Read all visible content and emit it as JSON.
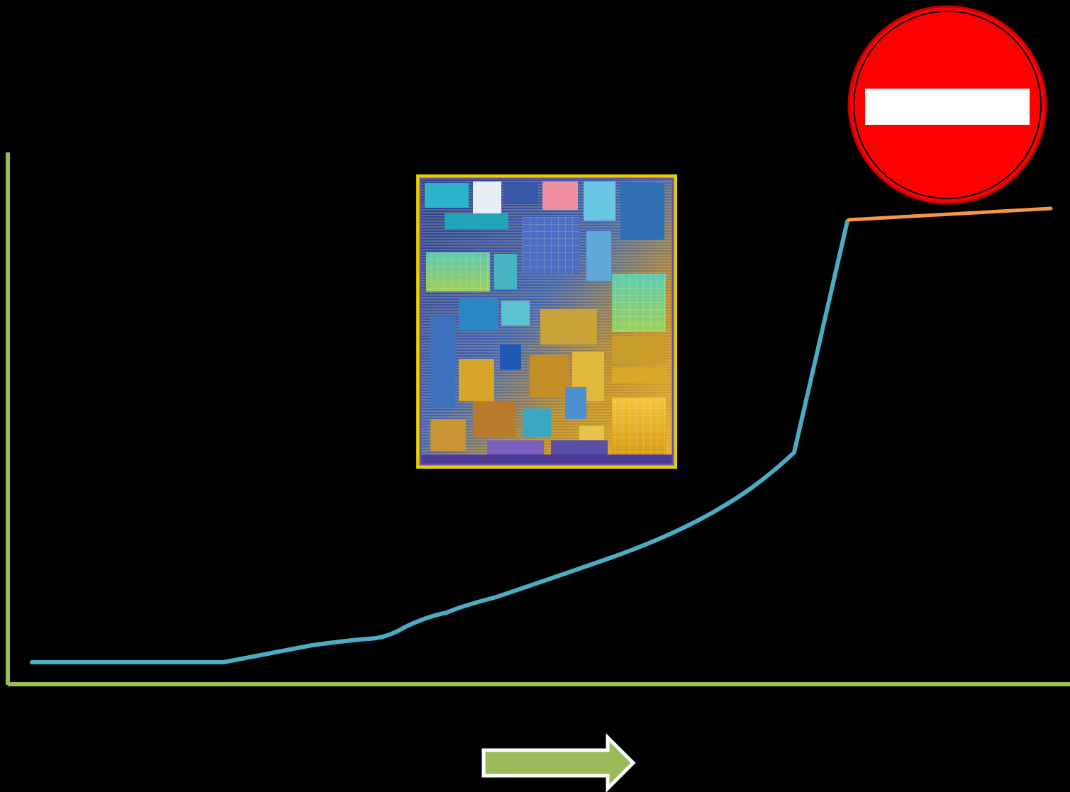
{
  "slide": {
    "background": "#000000"
  },
  "axes": {
    "color": "#9BBB59",
    "labels": []
  },
  "curves": {
    "growth_color": "#4BACC6",
    "plateau_color": "#F79646"
  },
  "chip_image": {
    "icon": "cpu-die-photo"
  },
  "stop_sign": {
    "icon": "no-entry-sign",
    "disk_color": "#FF0000",
    "bar_color": "#FFFFFF"
  },
  "arrow": {
    "icon": "right-arrow-icon",
    "fill": "#9BBB59",
    "outline": "#FFFFFF"
  }
}
